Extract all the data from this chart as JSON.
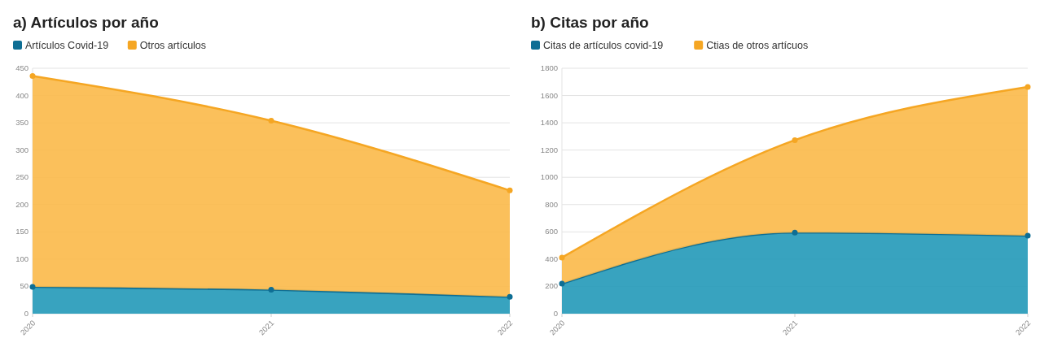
{
  "chart_data": [
    {
      "type": "area",
      "title": "a) Artículos por año",
      "categories": [
        "2020",
        "2021",
        "2022"
      ],
      "stacked": true,
      "series": [
        {
          "name": "Artículos Covid-19",
          "color": "#0e6e94",
          "values": [
            49,
            44,
            31
          ]
        },
        {
          "name": "Otros artículos",
          "color": "#f5a623",
          "values": [
            387,
            310,
            195
          ]
        }
      ],
      "ylim": [
        0,
        450
      ],
      "yticks": [
        0,
        50,
        100,
        150,
        200,
        250,
        300,
        350,
        400,
        450
      ],
      "grid": "y",
      "legend": "top left",
      "marker": "circle"
    },
    {
      "type": "area",
      "title": "b) Citas por año",
      "categories": [
        "2020",
        "2021",
        "2022"
      ],
      "stacked": true,
      "series": [
        {
          "name": "Citas de artículos covid-19",
          "color": "#0e6e94",
          "values": [
            220,
            595,
            572
          ]
        },
        {
          "name": "Ctias de otros artícuos",
          "color": "#f5a623",
          "values": [
            192,
            678,
            1091
          ]
        }
      ],
      "ylim": [
        0,
        1800
      ],
      "yticks": [
        0,
        200,
        400,
        600,
        800,
        1000,
        1200,
        1400,
        1600,
        1800
      ],
      "grid": "y",
      "legend": "top left",
      "marker": "circle"
    }
  ]
}
